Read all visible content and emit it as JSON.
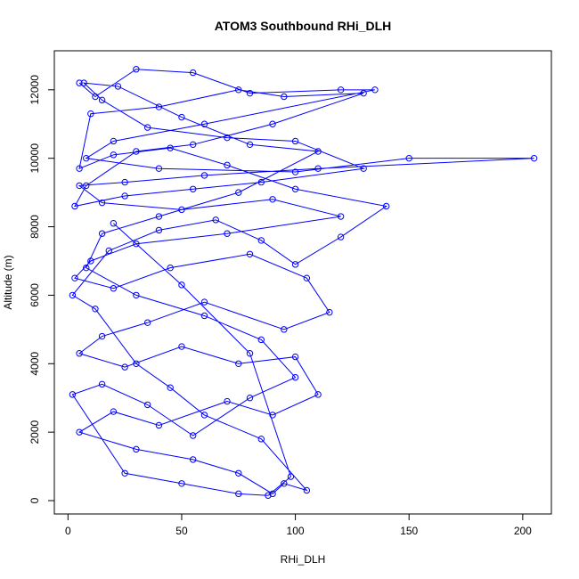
{
  "chart_data": {
    "type": "line",
    "markers": true,
    "title": "ATOM3 Southbound RHi_DLH",
    "x_label": "RHi_DLH",
    "y_label": "Altitude (m)",
    "series": [
      {
        "name": "RHi_DLH",
        "color": "#0000ff",
        "x": [
          5,
          12,
          30,
          55,
          80,
          120,
          135,
          60,
          20,
          8,
          40,
          100,
          150,
          205,
          110,
          60,
          25,
          5,
          15,
          50,
          90,
          120,
          70,
          30,
          10,
          3,
          20,
          45,
          80,
          105,
          115,
          95,
          60,
          35,
          15,
          5,
          25,
          50,
          75,
          100,
          110,
          90,
          70,
          40,
          20,
          5,
          30,
          55,
          75,
          90,
          95,
          105,
          85,
          60,
          45,
          30,
          12,
          2,
          18,
          40,
          65,
          85,
          100,
          120,
          140,
          100,
          70,
          45,
          20,
          5,
          10,
          40,
          75,
          95,
          130,
          90,
          55,
          30,
          8,
          3,
          25,
          55,
          85,
          130,
          100,
          70,
          35,
          15,
          7,
          22,
          50,
          80,
          110,
          75,
          40,
          15,
          8,
          30,
          60,
          85,
          100,
          80,
          55,
          35,
          15,
          2,
          25,
          50,
          75,
          88,
          98,
          80,
          50,
          20
        ],
        "values": [
          12200,
          11800,
          12600,
          12500,
          11900,
          12000,
          12000,
          11000,
          10500,
          10000,
          9700,
          9600,
          10000,
          10000,
          9700,
          9500,
          9300,
          9200,
          8700,
          8500,
          8800,
          8300,
          7800,
          7500,
          7000,
          6500,
          6200,
          6800,
          7200,
          6500,
          5500,
          5000,
          5800,
          5200,
          4800,
          4300,
          3900,
          4500,
          4000,
          4200,
          3100,
          2500,
          2900,
          2200,
          2600,
          2000,
          1500,
          1200,
          800,
          200,
          500,
          300,
          1800,
          2500,
          3300,
          4000,
          5600,
          6000,
          7300,
          7900,
          8200,
          7600,
          6900,
          7700,
          8600,
          9100,
          9800,
          10300,
          10100,
          9700,
          11300,
          11500,
          12000,
          11800,
          11900,
          11000,
          10400,
          10200,
          9200,
          8600,
          8900,
          9100,
          9300,
          9700,
          10500,
          10600,
          10900,
          11700,
          12200,
          12100,
          11200,
          10400,
          10200,
          9000,
          8300,
          7800,
          6800,
          6000,
          5400,
          4700,
          3600,
          3000,
          1900,
          2800,
          3400,
          3100,
          800,
          500,
          200,
          150,
          700,
          4300,
          6300,
          8100
        ]
      }
    ],
    "xlim": [
      -6,
      212.6
    ],
    "ylim": [
      -390,
      13140
    ],
    "xticks": [
      0,
      50,
      100,
      150,
      200
    ],
    "yticks": [
      0,
      2000,
      4000,
      6000,
      8000,
      10000,
      12000
    ]
  }
}
